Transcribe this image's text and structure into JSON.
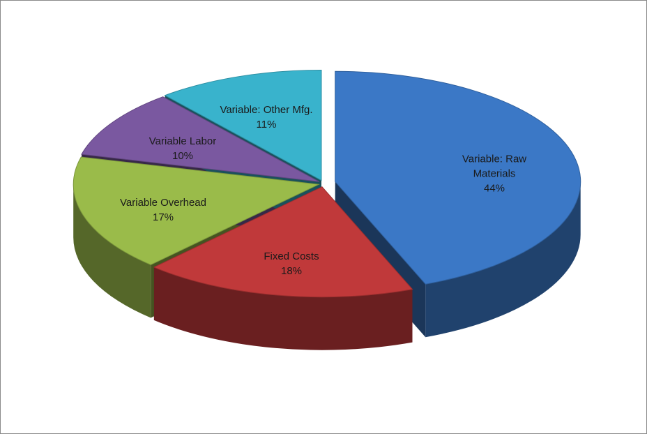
{
  "chart_data": {
    "type": "pie",
    "categories": [
      "Variable: Raw Materials",
      "Fixed Costs",
      "Variable Overhead",
      "Variable Labor",
      "Variable: Other Mfg."
    ],
    "values": [
      44,
      18,
      17,
      10,
      11
    ],
    "value_labels": [
      "44%",
      "18%",
      "17%",
      "10%",
      "11%"
    ],
    "colors": [
      "#3b78c6",
      "#c0393a",
      "#9abb4a",
      "#7a58a0",
      "#39b3cc"
    ]
  }
}
